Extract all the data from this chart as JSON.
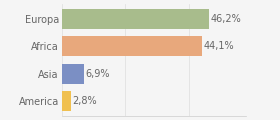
{
  "categories": [
    "America",
    "Asia",
    "Africa",
    "Europa"
  ],
  "values": [
    2.8,
    6.9,
    44.1,
    46.2
  ],
  "bar_colors": [
    "#f0c050",
    "#7b8fc4",
    "#e8a87c",
    "#a8bc8c"
  ],
  "labels": [
    "2,8%",
    "6,9%",
    "44,1%",
    "46,2%"
  ],
  "xlim": [
    0,
    58
  ],
  "bar_height": 0.72,
  "background_color": "#f5f5f5",
  "label_fontsize": 7.0,
  "category_fontsize": 7.0,
  "label_color": "#666666",
  "category_color": "#666666",
  "grid_color": "#dddddd",
  "spine_color": "#cccccc"
}
